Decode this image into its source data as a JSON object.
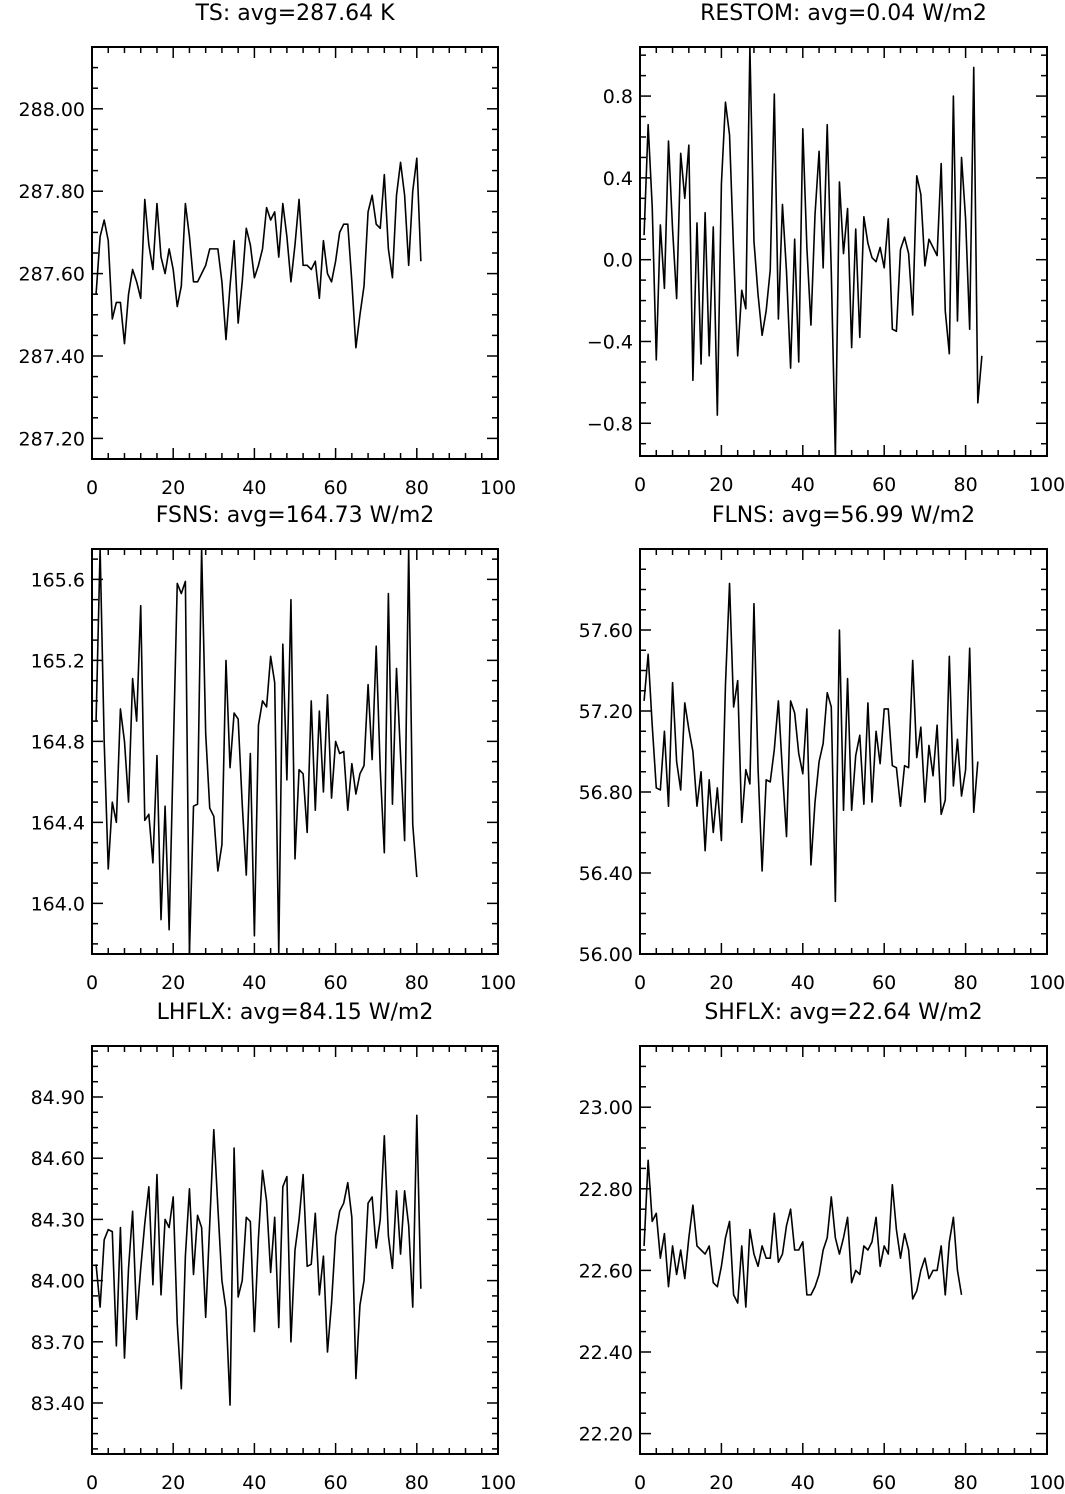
{
  "chart_data": [
    {
      "type": "line",
      "title": "TS: avg=287.64 K",
      "xlim": [
        0,
        100
      ],
      "ylim": [
        287.15,
        288.15
      ],
      "x_ticks": [
        "0",
        "20",
        "40",
        "60",
        "80",
        "100"
      ],
      "y_ticks": [
        {
          "value": 287.2,
          "label": "287.20"
        },
        {
          "value": 287.4,
          "label": "287.40"
        },
        {
          "value": 287.6,
          "label": "287.60"
        },
        {
          "value": 287.8,
          "label": "287.80"
        },
        {
          "value": 288.0,
          "label": "288.00"
        }
      ],
      "series": [
        {
          "x_start": 1,
          "values": [
            287.55,
            287.69,
            287.73,
            287.68,
            287.49,
            287.53,
            287.53,
            287.43,
            287.55,
            287.61,
            287.58,
            287.54,
            287.78,
            287.67,
            287.61,
            287.77,
            287.64,
            287.6,
            287.66,
            287.61,
            287.52,
            287.57,
            287.77,
            287.69,
            287.58,
            287.58,
            287.6,
            287.62,
            287.66,
            287.66,
            287.66,
            287.58,
            287.44,
            287.57,
            287.68,
            287.48,
            287.58,
            287.71,
            287.67,
            287.59,
            287.62,
            287.66,
            287.76,
            287.73,
            287.75,
            287.64,
            287.77,
            287.69,
            287.58,
            287.67,
            287.78,
            287.62,
            287.62,
            287.61,
            287.63,
            287.54,
            287.68,
            287.6,
            287.58,
            287.63,
            287.7,
            287.72,
            287.72,
            287.58,
            287.42,
            287.5,
            287.57,
            287.75,
            287.79,
            287.72,
            287.71,
            287.84,
            287.66,
            287.59,
            287.79,
            287.87,
            287.79,
            287.62,
            287.8,
            287.88,
            287.63
          ]
        }
      ]
    },
    {
      "type": "line",
      "title": "RESTOM: avg=0.04 W/m2",
      "xlim": [
        0,
        100
      ],
      "ylim": [
        -0.96,
        1.04
      ],
      "x_ticks": [
        "0",
        "20",
        "40",
        "60",
        "80",
        "100"
      ],
      "y_ticks": [
        {
          "value": -0.8,
          "label": "−0.8"
        },
        {
          "value": -0.4,
          "label": "−0.4"
        },
        {
          "value": 0.0,
          "label": "0.0"
        },
        {
          "value": 0.4,
          "label": "0.4"
        },
        {
          "value": 0.8,
          "label": "0.8"
        }
      ],
      "series": [
        {
          "x_start": 1,
          "values": [
            0.12,
            0.66,
            0.26,
            -0.49,
            0.17,
            -0.14,
            0.58,
            0.15,
            -0.19,
            0.52,
            0.3,
            0.56,
            -0.59,
            0.18,
            -0.51,
            0.23,
            -0.47,
            0.16,
            -0.76,
            0.37,
            0.77,
            0.61,
            0.04,
            -0.47,
            -0.15,
            -0.24,
            1.04,
            0.09,
            -0.17,
            -0.37,
            -0.25,
            -0.05,
            0.81,
            -0.29,
            0.27,
            -0.06,
            -0.53,
            0.1,
            -0.5,
            0.64,
            0.06,
            -0.32,
            0.22,
            0.53,
            -0.04,
            0.66,
            -0.06,
            -0.96,
            0.38,
            0.03,
            0.25,
            -0.43,
            0.15,
            -0.38,
            0.21,
            0.08,
            0.01,
            -0.01,
            0.06,
            -0.04,
            0.2,
            -0.34,
            -0.35,
            0.05,
            0.11,
            0.03,
            -0.27,
            0.41,
            0.32,
            -0.03,
            0.1,
            0.06,
            0.02,
            0.47,
            -0.25,
            -0.46,
            0.8,
            -0.3,
            0.5,
            0.2,
            -0.34,
            0.94,
            -0.7,
            -0.47
          ]
        }
      ]
    },
    {
      "type": "line",
      "title": "FSNS: avg=164.73 W/m2",
      "xlim": [
        0,
        100
      ],
      "ylim": [
        163.75,
        165.75
      ],
      "x_ticks": [
        "0",
        "20",
        "40",
        "60",
        "80",
        "100"
      ],
      "y_ticks": [
        {
          "value": 164.0,
          "label": "164.0"
        },
        {
          "value": 164.4,
          "label": "164.4"
        },
        {
          "value": 164.8,
          "label": "164.8"
        },
        {
          "value": 165.2,
          "label": "165.2"
        },
        {
          "value": 165.6,
          "label": "165.6"
        }
      ],
      "series": [
        {
          "x_start": 1,
          "values": [
            164.9,
            165.75,
            164.8,
            164.17,
            164.5,
            164.4,
            164.96,
            164.8,
            164.5,
            165.11,
            164.9,
            165.47,
            164.41,
            164.44,
            164.2,
            164.73,
            163.92,
            164.48,
            163.87,
            164.73,
            165.58,
            165.53,
            165.59,
            163.75,
            164.48,
            164.49,
            165.75,
            164.84,
            164.47,
            164.43,
            164.16,
            164.29,
            165.2,
            164.67,
            164.94,
            164.91,
            164.49,
            164.14,
            164.74,
            163.84,
            164.88,
            165.0,
            164.97,
            165.22,
            165.09,
            163.75,
            165.28,
            164.61,
            165.5,
            164.22,
            164.66,
            164.64,
            164.35,
            165.0,
            164.46,
            164.95,
            164.55,
            165.03,
            164.52,
            164.8,
            164.74,
            164.75,
            164.46,
            164.69,
            164.54,
            164.64,
            164.68,
            165.08,
            164.71,
            165.27,
            164.66,
            164.25,
            165.53,
            164.49,
            165.16,
            164.73,
            164.31,
            165.75,
            164.39,
            164.13
          ]
        }
      ]
    },
    {
      "type": "line",
      "title": "FLNS: avg=56.99 W/m2",
      "xlim": [
        0,
        100
      ],
      "ylim": [
        56.0,
        58.0
      ],
      "x_ticks": [
        "0",
        "20",
        "40",
        "60",
        "80",
        "100"
      ],
      "y_ticks": [
        {
          "value": 56.0,
          "label": "56.00"
        },
        {
          "value": 56.4,
          "label": "56.40"
        },
        {
          "value": 56.8,
          "label": "56.80"
        },
        {
          "value": 57.2,
          "label": "57.20"
        },
        {
          "value": 57.6,
          "label": "57.60"
        }
      ],
      "series": [
        {
          "x_start": 1,
          "values": [
            57.25,
            57.48,
            57.13,
            56.82,
            56.81,
            57.1,
            56.73,
            57.34,
            56.95,
            56.81,
            57.24,
            57.11,
            57.0,
            56.73,
            56.9,
            56.51,
            56.86,
            56.6,
            56.82,
            56.56,
            57.33,
            57.83,
            57.22,
            57.35,
            56.65,
            56.91,
            56.84,
            57.73,
            56.92,
            56.41,
            56.86,
            56.85,
            57.01,
            57.25,
            56.9,
            56.58,
            57.25,
            57.19,
            56.99,
            56.89,
            57.21,
            56.44,
            56.75,
            56.95,
            57.04,
            57.29,
            57.22,
            56.26,
            57.6,
            56.71,
            57.36,
            56.71,
            56.98,
            57.08,
            56.74,
            57.24,
            56.75,
            57.1,
            56.94,
            57.21,
            57.21,
            56.93,
            56.92,
            56.73,
            56.93,
            56.92,
            57.45,
            56.97,
            57.12,
            56.75,
            57.03,
            56.88,
            57.13,
            56.69,
            56.76,
            57.47,
            56.83,
            57.06,
            56.78,
            56.91,
            57.51,
            56.7,
            56.95
          ]
        }
      ]
    },
    {
      "type": "line",
      "title": "LHFLX: avg=84.15 W/m2",
      "xlim": [
        0,
        100
      ],
      "ylim": [
        83.15,
        85.15
      ],
      "x_ticks": [
        "0",
        "20",
        "40",
        "60",
        "80",
        "100"
      ],
      "y_ticks": [
        {
          "value": 83.4,
          "label": "83.40"
        },
        {
          "value": 83.7,
          "label": "83.70"
        },
        {
          "value": 84.0,
          "label": "84.00"
        },
        {
          "value": 84.3,
          "label": "84.30"
        },
        {
          "value": 84.6,
          "label": "84.60"
        },
        {
          "value": 84.9,
          "label": "84.90"
        }
      ],
      "series": [
        {
          "x_start": 1,
          "values": [
            84.08,
            83.87,
            84.2,
            84.25,
            84.24,
            83.68,
            84.26,
            83.62,
            84.06,
            84.34,
            83.81,
            84.06,
            84.28,
            84.46,
            83.98,
            84.52,
            83.93,
            84.3,
            84.26,
            84.41,
            83.79,
            83.47,
            84.12,
            84.45,
            84.03,
            84.32,
            84.26,
            83.82,
            84.28,
            84.74,
            84.36,
            84.0,
            83.86,
            83.39,
            84.65,
            83.92,
            84.0,
            84.31,
            84.29,
            83.75,
            84.21,
            84.54,
            84.39,
            84.04,
            84.31,
            83.77,
            84.46,
            84.51,
            83.7,
            84.15,
            84.3,
            84.52,
            84.07,
            84.08,
            84.33,
            83.93,
            84.12,
            83.65,
            83.89,
            84.22,
            84.34,
            84.38,
            84.48,
            84.31,
            83.52,
            83.88,
            84.0,
            84.38,
            84.41,
            84.16,
            84.3,
            84.71,
            84.22,
            84.06,
            84.44,
            84.13,
            84.44,
            84.27,
            83.87,
            84.81,
            83.96
          ]
        }
      ]
    },
    {
      "type": "line",
      "title": "SHFLX: avg=22.64 W/m2",
      "xlim": [
        0,
        100
      ],
      "ylim": [
        22.15,
        23.15
      ],
      "x_ticks": [
        "0",
        "20",
        "40",
        "60",
        "80",
        "100"
      ],
      "y_ticks": [
        {
          "value": 22.2,
          "label": "22.20"
        },
        {
          "value": 22.4,
          "label": "22.40"
        },
        {
          "value": 22.6,
          "label": "22.60"
        },
        {
          "value": 22.8,
          "label": "22.80"
        },
        {
          "value": 23.0,
          "label": "23.00"
        }
      ],
      "series": [
        {
          "x_start": 1,
          "values": [
            22.66,
            22.87,
            22.72,
            22.74,
            22.63,
            22.69,
            22.56,
            22.66,
            22.59,
            22.65,
            22.58,
            22.68,
            22.76,
            22.66,
            22.65,
            22.64,
            22.66,
            22.57,
            22.56,
            22.61,
            22.68,
            22.72,
            22.54,
            22.52,
            22.66,
            22.51,
            22.7,
            22.64,
            22.61,
            22.66,
            22.63,
            22.63,
            22.74,
            22.62,
            22.64,
            22.71,
            22.75,
            22.65,
            22.65,
            22.67,
            22.54,
            22.54,
            22.56,
            22.59,
            22.65,
            22.68,
            22.78,
            22.68,
            22.64,
            22.68,
            22.73,
            22.57,
            22.6,
            22.59,
            22.66,
            22.65,
            22.67,
            22.73,
            22.61,
            22.66,
            22.64,
            22.81,
            22.7,
            22.63,
            22.69,
            22.65,
            22.53,
            22.55,
            22.6,
            22.63,
            22.58,
            22.6,
            22.6,
            22.66,
            22.54,
            22.67,
            22.73,
            22.6,
            22.54
          ]
        }
      ]
    }
  ]
}
